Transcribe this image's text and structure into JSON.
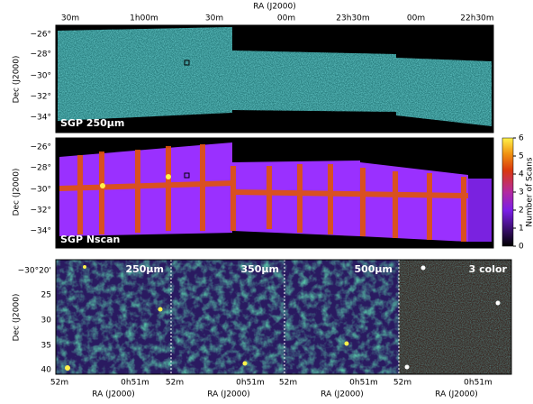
{
  "top_axis": {
    "label": "RA (J2000)",
    "ticks": [
      "30m",
      "1h00m",
      "30m",
      "00m",
      "23h30m",
      "00m",
      "22h30m"
    ]
  },
  "panels": [
    {
      "label": "SGP 250μm",
      "y_label": "Dec (J2000)",
      "y_ticks": [
        "−26°",
        "−28°",
        "−30°",
        "−32°",
        "−34°"
      ]
    },
    {
      "label": "SGP Nscan",
      "y_label": "Dec (J2000)",
      "y_ticks": [
        "−26°",
        "−28°",
        "−30°",
        "−32°",
        "−34°"
      ]
    }
  ],
  "colorbar": {
    "label": "Number of Scans",
    "ticks": [
      0,
      1,
      2,
      3,
      4,
      5,
      6
    ]
  },
  "zoom": {
    "y_label": "Dec (J2000)",
    "y_ticks": [
      "−30°20'",
      "25",
      "30",
      "35",
      "40"
    ],
    "panels": [
      {
        "label": "250μm",
        "x_ticks": [
          "52m",
          "0h51m"
        ],
        "x_label": "RA (J2000)"
      },
      {
        "label": "350μm",
        "x_ticks": [
          "52m",
          "0h51m"
        ],
        "x_label": "RA (J2000)"
      },
      {
        "label": "500μm",
        "x_ticks": [
          "52m",
          "0h51m"
        ],
        "x_label": "RA (J2000)"
      },
      {
        "label": "3 color",
        "x_ticks": [
          "52m",
          "0h51m"
        ],
        "x_label": "RA (J2000)"
      }
    ]
  }
}
